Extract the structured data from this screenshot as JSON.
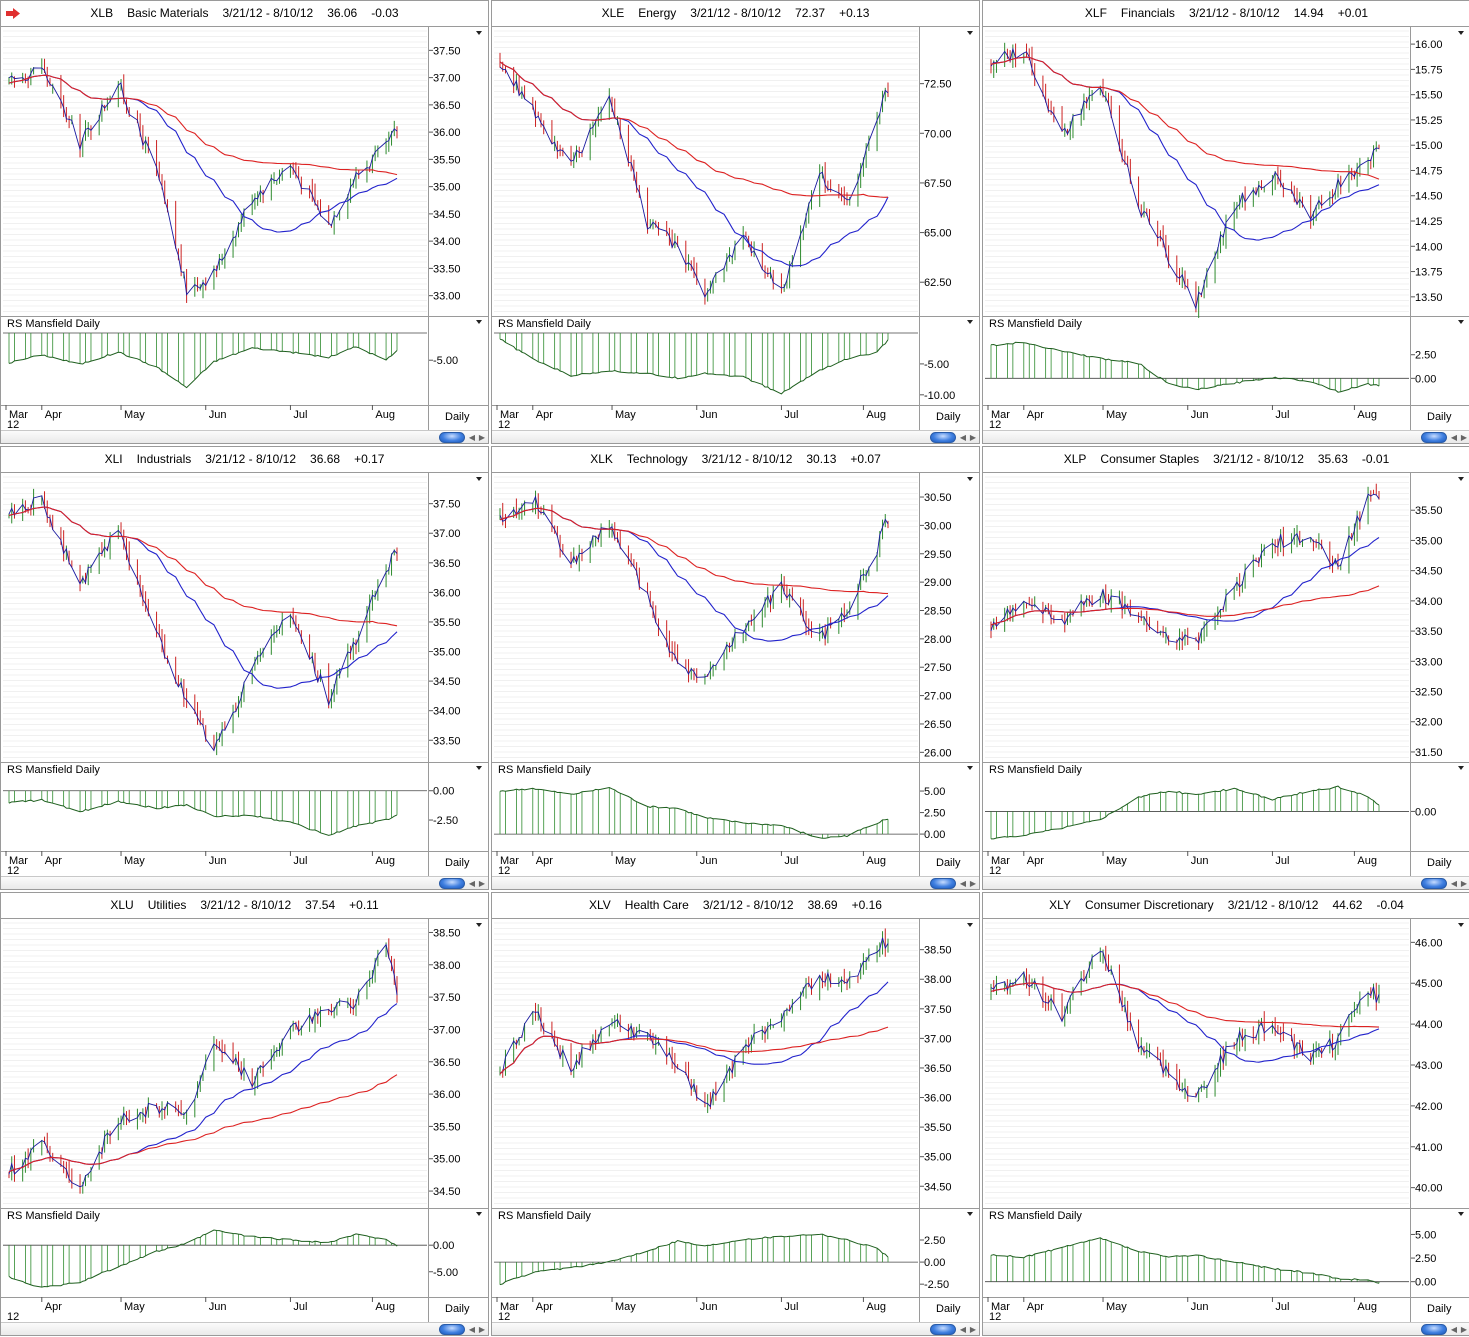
{
  "date_range": "3/21/12 - 8/10/12",
  "panels": [
    {
      "symbol": "XLB",
      "name": "Basic Materials",
      "last": "36.06",
      "change": "-0.03",
      "price_ticks": [
        "37.50",
        "37.00",
        "36.50",
        "36.00",
        "35.50",
        "35.00",
        "34.50",
        "34.00",
        "33.50",
        "33.00"
      ],
      "rs_ticks": [
        "-5.00"
      ],
      "rs_label": "RS Mansfield Daily",
      "interval": "Daily",
      "months": [
        "Mar",
        "Apr",
        "May",
        "Jun",
        "Jul",
        "Aug"
      ],
      "year": "12"
    },
    {
      "symbol": "XLE",
      "name": "Energy",
      "last": "72.37",
      "change": "+0.13",
      "price_ticks": [
        "72.50",
        "70.00",
        "67.50",
        "65.00",
        "62.50"
      ],
      "rs_ticks": [
        "-5.00",
        "-10.00"
      ],
      "rs_label": "RS Mansfield Daily",
      "interval": "Daily",
      "months": [
        "Mar",
        "Apr",
        "May",
        "Jun",
        "Jul",
        "Aug"
      ],
      "year": "12"
    },
    {
      "symbol": "XLF",
      "name": "Financials",
      "last": "14.94",
      "change": "+0.01",
      "price_ticks": [
        "16.00",
        "15.75",
        "15.50",
        "15.25",
        "15.00",
        "14.75",
        "14.50",
        "14.25",
        "14.00",
        "13.75",
        "13.50"
      ],
      "rs_ticks": [
        "2.50",
        "0.00"
      ],
      "rs_label": "RS Mansfield Daily",
      "interval": "Daily",
      "months": [
        "Mar",
        "Apr",
        "May",
        "Jun",
        "Jul",
        "Aug"
      ],
      "year": "12"
    },
    {
      "symbol": "XLI",
      "name": "Industrials",
      "last": "36.68",
      "change": "+0.17",
      "price_ticks": [
        "37.50",
        "37.00",
        "36.50",
        "36.00",
        "35.50",
        "35.00",
        "34.50",
        "34.00",
        "33.50"
      ],
      "rs_ticks": [
        "0.00",
        "-2.50"
      ],
      "rs_label": "RS Mansfield Daily",
      "interval": "Daily",
      "months": [
        "Mar",
        "Apr",
        "May",
        "Jun",
        "Jul",
        "Aug"
      ],
      "year": "12"
    },
    {
      "symbol": "XLK",
      "name": "Technology",
      "last": "30.13",
      "change": "+0.07",
      "price_ticks": [
        "30.50",
        "30.00",
        "29.50",
        "29.00",
        "28.50",
        "28.00",
        "27.50",
        "27.00",
        "26.50",
        "26.00"
      ],
      "rs_ticks": [
        "5.00",
        "2.50",
        "0.00"
      ],
      "rs_label": "RS Mansfield Daily",
      "interval": "Daily",
      "months": [
        "Mar",
        "Apr",
        "May",
        "Jun",
        "Jul",
        "Aug"
      ],
      "year": "12"
    },
    {
      "symbol": "XLP",
      "name": "Consumer Staples",
      "last": "35.63",
      "change": "-0.01",
      "price_ticks": [
        "35.50",
        "35.00",
        "34.50",
        "34.00",
        "33.50",
        "33.00",
        "32.50",
        "32.00",
        "31.50"
      ],
      "rs_ticks": [
        "0.00"
      ],
      "rs_label": "RS Mansfield Daily",
      "interval": "Daily",
      "months": [
        "Mar",
        "Apr",
        "May",
        "Jun",
        "Jul",
        "Aug"
      ],
      "year": "12"
    },
    {
      "symbol": "XLU",
      "name": "Utilities",
      "last": "37.54",
      "change": "+0.11",
      "price_ticks": [
        "38.50",
        "38.00",
        "37.50",
        "37.00",
        "36.50",
        "36.00",
        "35.50",
        "35.00",
        "34.50"
      ],
      "rs_ticks": [
        "0.00",
        "-5.00"
      ],
      "rs_label": "RS Mansfield Daily",
      "interval": "Daily",
      "months": [
        "Apr",
        "May",
        "Jun",
        "Jul",
        "Aug"
      ],
      "year": "12"
    },
    {
      "symbol": "XLV",
      "name": "Health Care",
      "last": "38.69",
      "change": "+0.16",
      "price_ticks": [
        "38.50",
        "38.00",
        "37.50",
        "37.00",
        "36.50",
        "36.00",
        "35.50",
        "35.00",
        "34.50"
      ],
      "rs_ticks": [
        "2.50",
        "0.00",
        "-2.50"
      ],
      "rs_label": "RS Mansfield Daily",
      "interval": "Daily",
      "months": [
        "Mar",
        "Apr",
        "May",
        "Jun",
        "Jul",
        "Aug"
      ],
      "year": "12"
    },
    {
      "symbol": "XLY",
      "name": "Consumer Discretionary",
      "last": "44.62",
      "change": "-0.04",
      "price_ticks": [
        "46.00",
        "45.00",
        "44.00",
        "43.00",
        "42.00",
        "41.00",
        "40.00"
      ],
      "rs_ticks": [
        "5.00",
        "2.50",
        "0.00"
      ],
      "rs_label": "RS Mansfield Daily",
      "interval": "Daily",
      "months": [
        "Mar",
        "Apr",
        "May",
        "Jun",
        "Jul",
        "Aug"
      ],
      "year": "12"
    }
  ],
  "colors": {
    "up_bar": "#2e8b2e",
    "down_bar": "#cc2222",
    "price_line": "#1a1aa0",
    "ma_short": "#2222cc",
    "ma_long": "#dd2222",
    "rs_fill": "#2e8b2e",
    "rs_line": "#1f5f1f",
    "grid": "#e2e2e2"
  },
  "chart_data": [
    {
      "type": "line",
      "title": "XLB Basic Materials",
      "x_range": [
        "2012-03-21",
        "2012-08-10"
      ],
      "ylim": [
        32.7,
        37.8
      ],
      "series": [
        {
          "name": "XLB",
          "x": [
            "2012-03-21",
            "2012-04-02",
            "2012-04-16",
            "2012-04-30",
            "2012-05-14",
            "2012-05-25",
            "2012-06-04",
            "2012-06-18",
            "2012-07-02",
            "2012-07-16",
            "2012-07-26",
            "2012-08-06",
            "2012-08-10"
          ],
          "values": [
            36.9,
            37.2,
            35.8,
            36.9,
            35.3,
            33.1,
            33.4,
            34.8,
            35.4,
            34.3,
            35.2,
            35.7,
            36.06
          ]
        }
      ],
      "rs_values": [
        -5.2,
        -4.6,
        -5.3,
        -4.4,
        -5.5,
        -7.0,
        -5.1,
        -4.1,
        -4.4,
        -4.8,
        -4.0,
        -5.0,
        -4.3
      ]
    },
    {
      "type": "line",
      "title": "XLE Energy",
      "x_range": [
        "2012-03-21",
        "2012-08-10"
      ],
      "ylim": [
        61,
        75
      ],
      "series": [
        {
          "name": "XLE",
          "x": [
            "2012-03-21",
            "2012-04-02",
            "2012-04-16",
            "2012-04-30",
            "2012-05-14",
            "2012-05-25",
            "2012-06-04",
            "2012-06-18",
            "2012-07-02",
            "2012-07-16",
            "2012-07-26",
            "2012-08-06",
            "2012-08-10"
          ],
          "values": [
            73.6,
            71.2,
            68.3,
            72.0,
            65.5,
            64.3,
            61.8,
            64.8,
            62.0,
            68.0,
            66.4,
            70.5,
            72.37
          ]
        }
      ],
      "rs_values": [
        -1.0,
        -4.2,
        -6.9,
        -6.1,
        -6.6,
        -7.3,
        -6.5,
        -7.1,
        -9.8,
        -6.0,
        -4.2,
        -3.1,
        -1.2
      ]
    },
    {
      "type": "line",
      "title": "XLF Financials",
      "x_range": [
        "2012-03-21",
        "2012-08-10"
      ],
      "ylim": [
        13.35,
        16.1
      ],
      "series": [
        {
          "name": "XLF",
          "x": [
            "2012-03-21",
            "2012-04-02",
            "2012-04-16",
            "2012-04-30",
            "2012-05-14",
            "2012-05-25",
            "2012-06-04",
            "2012-06-18",
            "2012-07-02",
            "2012-07-16",
            "2012-07-26",
            "2012-08-06",
            "2012-08-10"
          ],
          "values": [
            15.8,
            15.95,
            15.1,
            15.6,
            14.4,
            13.9,
            13.45,
            14.4,
            14.7,
            14.3,
            14.6,
            14.85,
            14.94
          ]
        }
      ],
      "rs_values": [
        3.5,
        3.8,
        2.9,
        2.1,
        1.6,
        -0.6,
        -1.2,
        -0.5,
        0.1,
        -0.3,
        -1.4,
        -0.6,
        -0.8
      ]
    },
    {
      "type": "line",
      "title": "XLI Industrials",
      "x_range": [
        "2012-03-21",
        "2012-08-10"
      ],
      "ylim": [
        33.2,
        37.9
      ],
      "series": [
        {
          "name": "XLI",
          "x": [
            "2012-03-21",
            "2012-04-02",
            "2012-04-16",
            "2012-04-30",
            "2012-05-14",
            "2012-05-25",
            "2012-06-04",
            "2012-06-18",
            "2012-07-02",
            "2012-07-16",
            "2012-07-26",
            "2012-08-06",
            "2012-08-10"
          ],
          "values": [
            37.3,
            37.6,
            36.1,
            37.1,
            35.3,
            34.2,
            33.3,
            34.7,
            35.6,
            34.2,
            35.2,
            36.4,
            36.68
          ]
        }
      ],
      "rs_values": [
        -1.0,
        -0.8,
        -1.8,
        -0.9,
        -1.5,
        -1.2,
        -2.2,
        -2.1,
        -2.7,
        -3.8,
        -3.0,
        -2.5,
        -2.1
      ]
    },
    {
      "type": "line",
      "title": "XLK Technology",
      "x_range": [
        "2012-03-21",
        "2012-08-10"
      ],
      "ylim": [
        25.9,
        30.8
      ],
      "series": [
        {
          "name": "XLK",
          "x": [
            "2012-03-21",
            "2012-04-02",
            "2012-04-16",
            "2012-04-30",
            "2012-05-14",
            "2012-05-25",
            "2012-06-04",
            "2012-06-18",
            "2012-07-02",
            "2012-07-16",
            "2012-07-26",
            "2012-08-06",
            "2012-08-10"
          ],
          "values": [
            30.1,
            30.5,
            29.3,
            30.0,
            28.7,
            27.5,
            27.4,
            28.2,
            28.9,
            28.0,
            28.5,
            29.6,
            30.13
          ]
        }
      ],
      "rs_values": [
        5.0,
        5.3,
        4.6,
        5.4,
        3.2,
        3.0,
        1.9,
        1.3,
        1.0,
        -0.5,
        -0.2,
        1.3,
        1.8
      ]
    },
    {
      "type": "line",
      "title": "XLP Consumer Staples",
      "x_range": [
        "2012-03-21",
        "2012-08-10"
      ],
      "ylim": [
        31.4,
        36.0
      ],
      "series": [
        {
          "name": "XLP",
          "x": [
            "2012-03-21",
            "2012-04-02",
            "2012-04-16",
            "2012-04-30",
            "2012-05-14",
            "2012-05-25",
            "2012-06-04",
            "2012-06-18",
            "2012-07-02",
            "2012-07-16",
            "2012-07-26",
            "2012-08-06",
            "2012-08-10"
          ],
          "values": [
            33.6,
            34.0,
            33.7,
            34.1,
            33.8,
            33.4,
            33.3,
            34.2,
            35.0,
            35.0,
            34.6,
            35.7,
            35.63
          ]
        }
      ],
      "rs_values": [
        -3.5,
        -3.0,
        -2.1,
        -1.0,
        1.8,
        2.6,
        2.1,
        2.9,
        1.5,
        2.6,
        3.1,
        1.9,
        0.8
      ]
    },
    {
      "type": "line",
      "title": "XLU Utilities",
      "x_range": [
        "2012-03-21",
        "2012-08-10"
      ],
      "ylim": [
        34.3,
        38.6
      ],
      "series": [
        {
          "name": "XLU",
          "x": [
            "2012-03-21",
            "2012-04-02",
            "2012-04-16",
            "2012-04-30",
            "2012-05-14",
            "2012-05-25",
            "2012-06-04",
            "2012-06-18",
            "2012-07-02",
            "2012-07-16",
            "2012-07-26",
            "2012-08-06",
            "2012-08-10"
          ],
          "values": [
            34.8,
            35.2,
            34.6,
            35.6,
            35.8,
            35.7,
            36.8,
            36.2,
            37.0,
            37.3,
            37.4,
            38.3,
            37.54
          ]
        }
      ],
      "rs_values": [
        -6.0,
        -8.0,
        -7.0,
        -4.0,
        -1.2,
        0.3,
        2.8,
        1.6,
        1.0,
        0.5,
        2.0,
        1.2,
        -0.3
      ]
    },
    {
      "type": "line",
      "title": "XLV Health Care",
      "x_range": [
        "2012-03-21",
        "2012-08-10"
      ],
      "ylim": [
        34.2,
        38.9
      ],
      "series": [
        {
          "name": "XLV",
          "x": [
            "2012-03-21",
            "2012-04-02",
            "2012-04-16",
            "2012-04-30",
            "2012-05-14",
            "2012-05-25",
            "2012-06-04",
            "2012-06-18",
            "2012-07-02",
            "2012-07-16",
            "2012-07-26",
            "2012-08-06",
            "2012-08-10"
          ],
          "values": [
            36.4,
            37.5,
            36.5,
            37.3,
            37.0,
            36.6,
            35.8,
            36.8,
            37.4,
            38.1,
            37.9,
            38.5,
            38.69
          ]
        }
      ],
      "rs_values": [
        -2.5,
        -1.2,
        -0.6,
        0.0,
        1.3,
        2.4,
        1.8,
        2.6,
        2.9,
        3.2,
        2.5,
        1.6,
        0.6
      ]
    },
    {
      "type": "line",
      "title": "XLY Consumer Discretionary",
      "x_range": [
        "2012-03-21",
        "2012-08-10"
      ],
      "ylim": [
        39.6,
        46.4
      ],
      "series": [
        {
          "name": "XLY",
          "x": [
            "2012-03-21",
            "2012-04-02",
            "2012-04-16",
            "2012-04-30",
            "2012-05-14",
            "2012-05-25",
            "2012-06-04",
            "2012-06-18",
            "2012-07-02",
            "2012-07-16",
            "2012-07-26",
            "2012-08-06",
            "2012-08-10"
          ],
          "values": [
            44.8,
            45.2,
            44.2,
            45.9,
            43.5,
            42.8,
            42.2,
            43.6,
            44.0,
            43.2,
            43.6,
            44.9,
            44.62
          ]
        }
      ],
      "rs_values": [
        2.8,
        2.6,
        3.6,
        4.6,
        3.2,
        2.6,
        2.8,
        2.1,
        1.4,
        0.9,
        0.3,
        0.2,
        -0.2
      ]
    }
  ]
}
